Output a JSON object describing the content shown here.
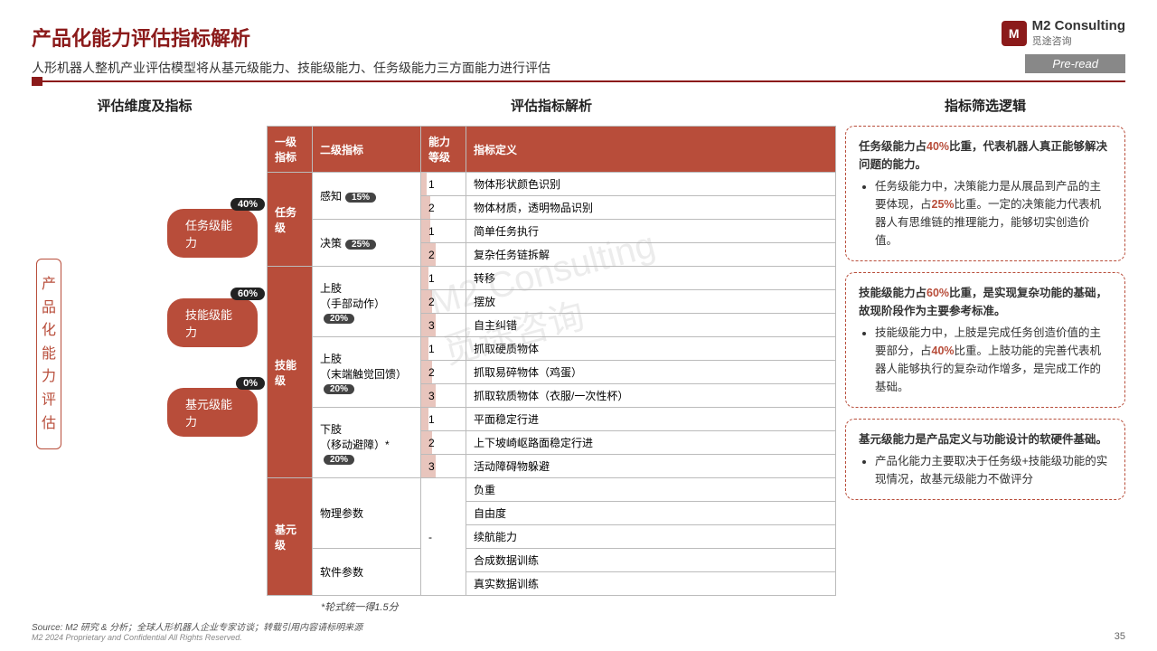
{
  "title": "产品化能力评估指标解析",
  "subtitle": "人形机器人整机产业评估模型将从基元级能力、技能级能力、任务级能力三方面能力进行评估",
  "logo": {
    "icon": "M",
    "text": "M2 Consulting",
    "sub": "觅途咨询"
  },
  "preread": "Pre-read",
  "sections": {
    "s1": "评估维度及指标",
    "s2": "评估指标解析",
    "s3": "指标筛选逻辑"
  },
  "vert": "产品化能力评估",
  "pills": [
    {
      "label": "任务级能力",
      "pct": "40%"
    },
    {
      "label": "技能级能力",
      "pct": "60%"
    },
    {
      "label": "基元级能力",
      "pct": "0%"
    }
  ],
  "headers": [
    "一级指标",
    "二级指标",
    "能力等级",
    "指标定义"
  ],
  "rows": [
    {
      "l1": "任务级",
      "l1r": 4,
      "l2": "感知",
      "l2r": 2,
      "l2p": "15%",
      "g": "1",
      "gw": 6,
      "d": "物体形状颜色识别"
    },
    {
      "g": "2",
      "gw": 10,
      "d": "物体材质，透明物品识别"
    },
    {
      "l2": "决策",
      "l2r": 2,
      "l2p": "25%",
      "g": "1",
      "gw": 10,
      "d": "简单任务执行"
    },
    {
      "g": "2",
      "gw": 16,
      "d": "复杂任务链拆解"
    },
    {
      "l1": "技能级",
      "l1r": 9,
      "l2": "上肢\n（手部动作）",
      "l2r": 3,
      "l2p": "20%",
      "g": "1",
      "gw": 8,
      "d": "转移"
    },
    {
      "g": "2",
      "gw": 12,
      "d": "摆放"
    },
    {
      "g": "3",
      "gw": 16,
      "d": "自主纠错"
    },
    {
      "l2": "上肢\n（末端触觉回馈）",
      "l2r": 3,
      "l2p": "20%",
      "g": "1",
      "gw": 8,
      "d": "抓取硬质物体"
    },
    {
      "g": "2",
      "gw": 12,
      "d": "抓取易碎物体（鸡蛋）"
    },
    {
      "g": "3",
      "gw": 16,
      "d": "抓取软质物体（衣服/一次性杯）"
    },
    {
      "l2": "下肢\n（移动避障）*",
      "l2r": 3,
      "l2p": "20%",
      "g": "1",
      "gw": 8,
      "d": "平面稳定行进"
    },
    {
      "g": "2",
      "gw": 12,
      "d": "上下坡崎岖路面稳定行进"
    },
    {
      "g": "3",
      "gw": 16,
      "d": "活动障碍物躲避"
    },
    {
      "l1": "基元级",
      "l1r": 5,
      "l2": "物理参数",
      "l2r": 3,
      "gdash": true,
      "gr": 5,
      "d": "负重"
    },
    {
      "d": "自由度"
    },
    {
      "d": "续航能力"
    },
    {
      "l2": "软件参数",
      "l2r": 2,
      "d": "合成数据训练"
    },
    {
      "d": "真实数据训练"
    }
  ],
  "tnote": "*轮式统一得1.5分",
  "boxes": [
    {
      "head": [
        "任务级能力占",
        "40%",
        "比重，代表机器人真正能够解决问题的能力。"
      ],
      "items": [
        [
          "任务级能力中，决策能力是从展品到产品的主要体现，占",
          "25%",
          "比重。一定的决策能力代表机器人有思维链的推理能力，能够切实创造价值。"
        ]
      ]
    },
    {
      "head": [
        "技能级能力占",
        "60%",
        "比重，是实现复杂功能的基础，故现阶段作为主要参考标准。"
      ],
      "items": [
        [
          "技能级能力中，上肢是完成任务创造价值的主要部分，占",
          "40%",
          "比重。上肢功能的完善代表机器人能够执行的复杂动作增多，是完成工作的基础。"
        ]
      ]
    },
    {
      "head": [
        "基元级能力是产品定义与功能设计的软硬件基础。",
        "",
        ""
      ],
      "items": [
        [
          "产品化能力主要取决于任务级+技能级功能的实现情况，故基元级能力不做评分",
          "",
          ""
        ]
      ]
    }
  ],
  "footer": "Source: M2 研究 & 分析；全球人形机器人企业专家访谈；转载引用内容请标明来源",
  "footer2": "M2 2024 Proprietary and Confidential All Rights Reserved.",
  "pagenum": "35",
  "watermark": "M2 Consulting\n觅途咨询"
}
